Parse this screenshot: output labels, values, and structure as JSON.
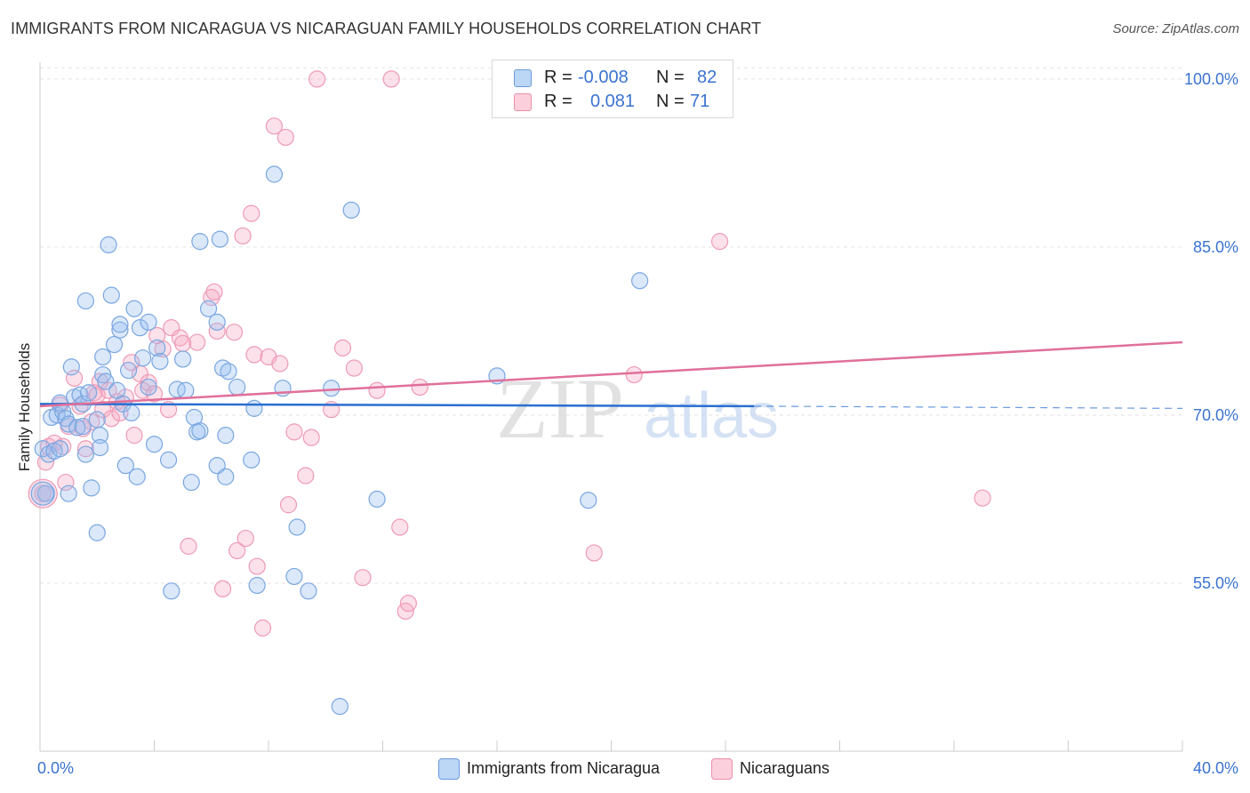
{
  "title": "IMMIGRANTS FROM NICARAGUA VS NICARAGUAN FAMILY HOUSEHOLDS CORRELATION CHART",
  "source": "Source: ZipAtlas.com",
  "watermark": {
    "zip": "ZIP",
    "atlas": "atlas"
  },
  "legend": {
    "rows": [
      {
        "r_label": "R =",
        "r_value": "-0.008",
        "n_label": "N =",
        "n_value": "82",
        "color": "#a8c8f0",
        "border": "#6a9ad8"
      },
      {
        "r_label": "R =",
        "r_value": "0.081",
        "n_label": "N =",
        "n_value": "71",
        "color": "#f8c0d0",
        "border": "#e890aa"
      }
    ]
  },
  "colors": {
    "blue_fill": "rgba(150,190,240,0.35)",
    "blue_stroke": "#7aa6e0",
    "blue_line": "#2a6fcf",
    "pink_fill": "rgba(245,170,195,0.35)",
    "pink_stroke": "#ee9ab5",
    "pink_line": "#e0709a",
    "tick_label": "#3a73d0"
  },
  "chart_data": {
    "type": "scatter",
    "title": "IMMIGRANTS FROM NICARAGUA VS NICARAGUAN FAMILY HOUSEHOLDS CORRELATION CHART",
    "xlabel": "",
    "ylabel": "Family Households",
    "xlim": [
      0,
      40
    ],
    "ylim": [
      40,
      101.5
    ],
    "x_tick_labels": [
      "0.0%",
      "40.0%"
    ],
    "y_ticks": [
      55,
      70,
      85,
      100
    ],
    "y_tick_labels": [
      "55.0%",
      "70.0%",
      "85.0%",
      "100.0%"
    ],
    "grid": true,
    "legend_position": "bottom-center",
    "series": [
      {
        "name": "Immigrants from Nicaragua",
        "r": -0.008,
        "n": 82,
        "trend": {
          "x": [
            0,
            25
          ],
          "y": [
            71.0,
            70.8
          ],
          "dashed_to": [
            40,
            70.6
          ]
        },
        "points": [
          [
            0.1,
            67.0
          ],
          [
            0.2,
            63.0
          ],
          [
            0.3,
            66.5
          ],
          [
            0.4,
            69.8
          ],
          [
            0.5,
            66.8
          ],
          [
            0.6,
            70.0
          ],
          [
            0.7,
            67.0
          ],
          [
            0.7,
            71.1
          ],
          [
            0.8,
            70.3
          ],
          [
            0.9,
            69.7
          ],
          [
            1.0,
            69.2
          ],
          [
            1.0,
            63.0
          ],
          [
            1.1,
            74.3
          ],
          [
            1.2,
            71.6
          ],
          [
            1.3,
            68.9
          ],
          [
            1.4,
            71.8
          ],
          [
            1.5,
            71.0
          ],
          [
            1.5,
            69.0
          ],
          [
            1.6,
            66.5
          ],
          [
            1.6,
            80.2
          ],
          [
            1.7,
            72.0
          ],
          [
            1.8,
            63.5
          ],
          [
            2.0,
            69.6
          ],
          [
            2.0,
            59.5
          ],
          [
            2.1,
            68.2
          ],
          [
            2.1,
            67.1
          ],
          [
            2.2,
            75.2
          ],
          [
            2.2,
            73.6
          ],
          [
            2.3,
            73.0
          ],
          [
            2.4,
            85.2
          ],
          [
            2.5,
            80.7
          ],
          [
            2.6,
            76.3
          ],
          [
            2.7,
            72.2
          ],
          [
            2.8,
            77.6
          ],
          [
            2.8,
            78.1
          ],
          [
            2.9,
            71.0
          ],
          [
            3.0,
            65.5
          ],
          [
            3.1,
            74.0
          ],
          [
            3.2,
            70.2
          ],
          [
            3.3,
            79.5
          ],
          [
            3.4,
            64.5
          ],
          [
            3.5,
            77.8
          ],
          [
            3.6,
            75.1
          ],
          [
            3.8,
            78.3
          ],
          [
            3.8,
            72.5
          ],
          [
            4.0,
            67.4
          ],
          [
            4.1,
            76.0
          ],
          [
            4.2,
            74.8
          ],
          [
            4.6,
            54.3
          ],
          [
            4.5,
            66.0
          ],
          [
            4.8,
            72.3
          ],
          [
            5.1,
            72.2
          ],
          [
            5.0,
            75.0
          ],
          [
            5.3,
            64.0
          ],
          [
            5.4,
            69.8
          ],
          [
            5.5,
            68.5
          ],
          [
            5.6,
            85.5
          ],
          [
            5.6,
            68.6
          ],
          [
            5.9,
            79.5
          ],
          [
            6.2,
            78.3
          ],
          [
            6.2,
            65.5
          ],
          [
            6.3,
            85.7
          ],
          [
            6.4,
            74.2
          ],
          [
            6.5,
            68.2
          ],
          [
            6.5,
            64.5
          ],
          [
            6.6,
            73.9
          ],
          [
            6.9,
            72.5
          ],
          [
            7.4,
            66.0
          ],
          [
            7.5,
            70.6
          ],
          [
            7.6,
            54.8
          ],
          [
            8.2,
            91.5
          ],
          [
            8.5,
            72.4
          ],
          [
            8.9,
            55.6
          ],
          [
            9.0,
            60.0
          ],
          [
            9.4,
            54.3
          ],
          [
            10.2,
            72.4
          ],
          [
            10.5,
            44.0
          ],
          [
            10.9,
            88.3
          ],
          [
            11.8,
            62.5
          ],
          [
            16.0,
            73.5
          ],
          [
            19.2,
            62.4
          ],
          [
            21.0,
            82.0
          ]
        ]
      },
      {
        "name": "Nicaraguans",
        "r": 0.081,
        "n": 71,
        "trend": {
          "x": [
            0,
            40
          ],
          "y": [
            70.8,
            76.5
          ]
        },
        "points": [
          [
            0.1,
            63.0
          ],
          [
            0.2,
            65.8
          ],
          [
            0.3,
            67.2
          ],
          [
            0.5,
            67.5
          ],
          [
            0.7,
            70.9
          ],
          [
            0.8,
            67.2
          ],
          [
            0.9,
            64.0
          ],
          [
            1.0,
            69.0
          ],
          [
            1.2,
            73.3
          ],
          [
            1.4,
            70.8
          ],
          [
            1.5,
            68.8
          ],
          [
            1.6,
            67.0
          ],
          [
            1.8,
            69.4
          ],
          [
            1.9,
            72.0
          ],
          [
            2.0,
            71.8
          ],
          [
            2.1,
            73.0
          ],
          [
            2.2,
            70.5
          ],
          [
            2.4,
            72.2
          ],
          [
            2.5,
            69.7
          ],
          [
            2.7,
            71.2
          ],
          [
            2.8,
            70.2
          ],
          [
            3.0,
            71.6
          ],
          [
            3.2,
            74.7
          ],
          [
            3.3,
            68.2
          ],
          [
            3.5,
            73.7
          ],
          [
            3.6,
            72.2
          ],
          [
            3.8,
            72.9
          ],
          [
            4.0,
            71.9
          ],
          [
            4.1,
            77.1
          ],
          [
            4.3,
            75.9
          ],
          [
            4.5,
            70.5
          ],
          [
            4.6,
            77.8
          ],
          [
            4.9,
            76.9
          ],
          [
            5.0,
            76.4
          ],
          [
            5.2,
            58.3
          ],
          [
            5.5,
            76.5
          ],
          [
            6.0,
            80.5
          ],
          [
            6.1,
            81.0
          ],
          [
            6.2,
            77.5
          ],
          [
            6.4,
            54.5
          ],
          [
            6.8,
            77.4
          ],
          [
            6.9,
            57.9
          ],
          [
            7.1,
            86.0
          ],
          [
            7.2,
            59.0
          ],
          [
            7.4,
            88.0
          ],
          [
            7.5,
            75.4
          ],
          [
            7.6,
            56.5
          ],
          [
            7.8,
            51.0
          ],
          [
            8.0,
            75.2
          ],
          [
            8.2,
            95.8
          ],
          [
            8.4,
            74.6
          ],
          [
            8.6,
            94.8
          ],
          [
            8.7,
            62.0
          ],
          [
            8.9,
            68.5
          ],
          [
            9.3,
            64.6
          ],
          [
            9.5,
            68.0
          ],
          [
            9.7,
            100.0
          ],
          [
            10.2,
            70.5
          ],
          [
            10.6,
            76.0
          ],
          [
            11.0,
            74.2
          ],
          [
            11.3,
            55.5
          ],
          [
            11.8,
            72.2
          ],
          [
            12.3,
            100.0
          ],
          [
            12.6,
            60.0
          ],
          [
            12.8,
            52.5
          ],
          [
            12.9,
            53.2
          ],
          [
            13.3,
            72.5
          ],
          [
            19.4,
            57.7
          ],
          [
            20.8,
            73.6
          ],
          [
            23.8,
            85.5
          ],
          [
            33.0,
            62.6
          ]
        ]
      }
    ]
  }
}
